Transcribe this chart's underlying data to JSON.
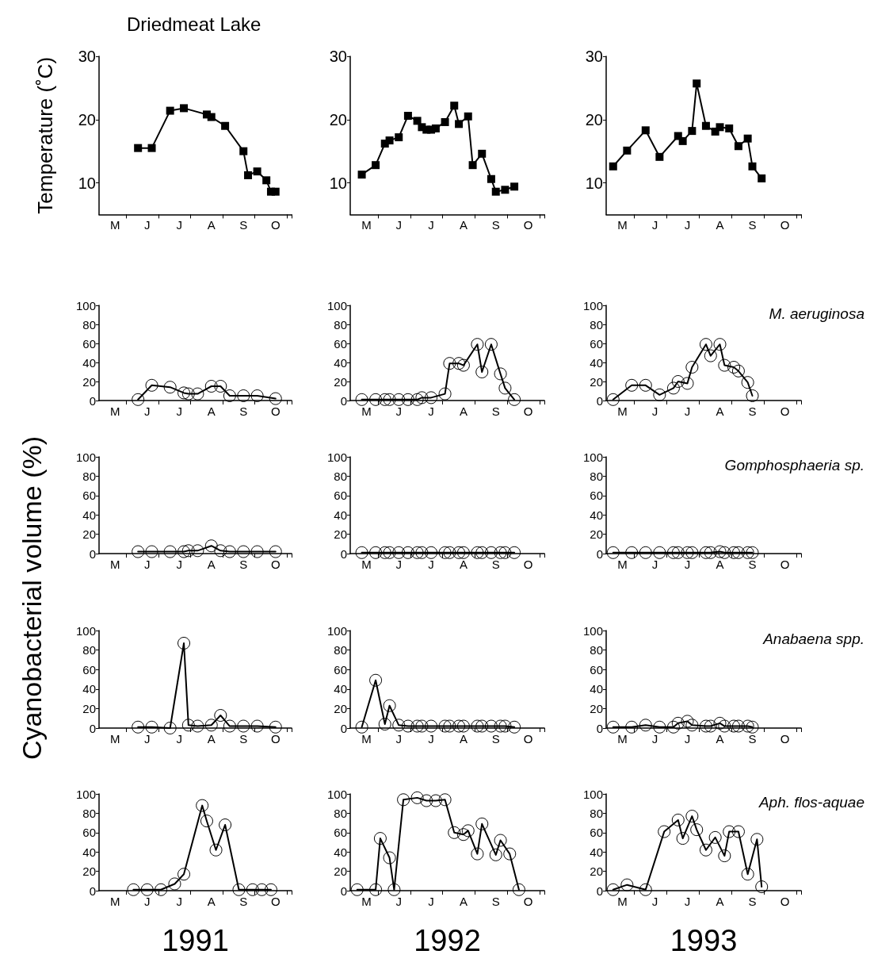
{
  "chart_data": [
    {
      "type": "line",
      "title": "Driedmeat Lake",
      "ylabel": "Temperature (˚C)",
      "marker": "square",
      "line_style": "solid",
      "ylim": [
        5,
        30
      ],
      "yticks": [
        10,
        20,
        30
      ],
      "categories": [
        null,
        null,
        null,
        "M",
        null,
        null,
        null,
        null,
        null,
        null,
        "J",
        null,
        null,
        null,
        null,
        null,
        null,
        "J",
        null,
        null,
        null,
        null,
        null,
        null,
        "A",
        null,
        null,
        null,
        null,
        null,
        null,
        "S",
        null,
        null,
        null,
        null,
        null,
        null,
        "O",
        null,
        null,
        null
      ],
      "series": [
        {
          "color": "#000000",
          "values": [
            null,
            null,
            null,
            null,
            null,
            null,
            null,
            null,
            15.5,
            null,
            null,
            15.5,
            null,
            null,
            null,
            21.4,
            null,
            null,
            21.8,
            null,
            null,
            null,
            null,
            20.8,
            20.4,
            null,
            null,
            19.0,
            null,
            null,
            null,
            15.0,
            11.2,
            null,
            11.8,
            null,
            10.4,
            8.6,
            8.6,
            null,
            null,
            null
          ]
        }
      ]
    },
    {
      "type": "line",
      "marker": "square",
      "line_style": "solid",
      "ylim": [
        5,
        30
      ],
      "yticks": [
        10,
        20,
        30
      ],
      "categories": [
        null,
        null,
        null,
        "M",
        null,
        null,
        null,
        null,
        null,
        null,
        "J",
        null,
        null,
        null,
        null,
        null,
        null,
        "J",
        null,
        null,
        null,
        null,
        null,
        null,
        "A",
        null,
        null,
        null,
        null,
        null,
        null,
        "S",
        null,
        null,
        null,
        null,
        null,
        null,
        "O",
        null,
        null,
        null
      ],
      "series": [
        {
          "color": "#000000",
          "values": [
            null,
            null,
            11.3,
            null,
            null,
            12.8,
            null,
            16.2,
            16.7,
            null,
            17.2,
            null,
            20.6,
            null,
            19.8,
            18.8,
            18.4,
            18.4,
            18.6,
            null,
            19.6,
            null,
            22.2,
            19.3,
            null,
            20.5,
            12.8,
            null,
            14.6,
            null,
            10.6,
            8.6,
            null,
            8.9,
            null,
            9.4,
            null,
            null,
            null,
            null,
            null,
            null
          ]
        }
      ]
    },
    {
      "type": "line",
      "marker": "square",
      "line_style": "solid",
      "ylim": [
        5,
        30
      ],
      "yticks": [
        10,
        20,
        30
      ],
      "categories": [
        null,
        null,
        null,
        "M",
        null,
        null,
        null,
        null,
        null,
        null,
        "J",
        null,
        null,
        null,
        null,
        null,
        null,
        "J",
        null,
        null,
        null,
        null,
        null,
        null,
        "A",
        null,
        null,
        null,
        null,
        null,
        null,
        "S",
        null,
        null,
        null,
        null,
        null,
        null,
        "O",
        null,
        null,
        null
      ],
      "series": [
        {
          "color": "#000000",
          "values": [
            null,
            12.6,
            null,
            null,
            15.1,
            null,
            null,
            null,
            18.3,
            null,
            null,
            14.1,
            null,
            null,
            null,
            17.4,
            16.6,
            null,
            18.2,
            25.7,
            null,
            19.0,
            null,
            18.1,
            18.8,
            null,
            18.6,
            null,
            15.8,
            null,
            17.0,
            12.6,
            null,
            10.7,
            null,
            null,
            null,
            null,
            null,
            null,
            null,
            null
          ]
        }
      ]
    },
    {
      "type": "line",
      "marker": "circle",
      "line_style": "solid",
      "ylim": [
        0,
        100
      ],
      "yticks": [
        0,
        20,
        40,
        60,
        80,
        100
      ],
      "categories": [
        null,
        null,
        null,
        "M",
        null,
        null,
        null,
        null,
        null,
        null,
        "J",
        null,
        null,
        null,
        null,
        null,
        null,
        "J",
        null,
        null,
        null,
        null,
        null,
        null,
        "A",
        null,
        null,
        null,
        null,
        null,
        null,
        "S",
        null,
        null,
        null,
        null,
        null,
        null,
        "O",
        null,
        null,
        null
      ],
      "series": [
        {
          "color": "#000000",
          "values": [
            null,
            null,
            null,
            null,
            null,
            null,
            null,
            null,
            1,
            null,
            null,
            16,
            null,
            null,
            null,
            14,
            null,
            null,
            8,
            7,
            null,
            7,
            null,
            null,
            15,
            null,
            15,
            null,
            5,
            null,
            null,
            5,
            null,
            null,
            5,
            null,
            null,
            null,
            2,
            null,
            null,
            null
          ]
        }
      ]
    },
    {
      "type": "line",
      "marker": "circle",
      "line_style": "solid",
      "ylim": [
        0,
        100
      ],
      "yticks": [
        0,
        20,
        40,
        60,
        80,
        100
      ],
      "categories": [
        null,
        null,
        null,
        "M",
        null,
        null,
        null,
        null,
        null,
        null,
        "J",
        null,
        null,
        null,
        null,
        null,
        null,
        "J",
        null,
        null,
        null,
        null,
        null,
        null,
        "A",
        null,
        null,
        null,
        null,
        null,
        null,
        "S",
        null,
        null,
        null,
        null,
        null,
        null,
        "O",
        null,
        null,
        null
      ],
      "series": [
        {
          "color": "#000000",
          "values": [
            null,
            null,
            1,
            null,
            null,
            1,
            null,
            1,
            1,
            null,
            1,
            null,
            1,
            null,
            1,
            3,
            null,
            3,
            null,
            null,
            7,
            39,
            null,
            39,
            37,
            null,
            null,
            59,
            30,
            null,
            59,
            null,
            28,
            13,
            null,
            1,
            null,
            null,
            null,
            null,
            null,
            null
          ]
        }
      ]
    },
    {
      "type": "line",
      "title": "M. aeruginosa",
      "marker": "circle",
      "line_style": "solid",
      "ylim": [
        0,
        100
      ],
      "yticks": [
        0,
        20,
        40,
        60,
        80,
        100
      ],
      "categories": [
        null,
        null,
        null,
        "M",
        null,
        null,
        null,
        null,
        null,
        null,
        "J",
        null,
        null,
        null,
        null,
        null,
        null,
        "J",
        null,
        null,
        null,
        null,
        null,
        null,
        "A",
        null,
        null,
        null,
        null,
        null,
        null,
        "S",
        null,
        null,
        null,
        null,
        null,
        null,
        "O",
        null,
        null,
        null
      ],
      "series": [
        {
          "color": "#000000",
          "values": [
            null,
            1,
            null,
            null,
            null,
            16,
            null,
            null,
            16,
            null,
            null,
            6,
            null,
            null,
            13,
            20,
            null,
            18,
            35,
            null,
            null,
            59,
            47,
            null,
            59,
            37,
            null,
            35,
            31,
            null,
            19,
            5,
            null,
            null,
            null,
            null,
            null,
            null,
            null,
            null,
            null,
            null
          ]
        }
      ]
    },
    {
      "type": "line",
      "ylabel": "Cyanobacterial volume (%)",
      "marker": "circle",
      "line_style": "solid",
      "ylim": [
        0,
        100
      ],
      "yticks": [
        0,
        20,
        40,
        60,
        80,
        100
      ],
      "categories": [
        null,
        null,
        null,
        "M",
        null,
        null,
        null,
        null,
        null,
        null,
        "J",
        null,
        null,
        null,
        null,
        null,
        null,
        "J",
        null,
        null,
        null,
        null,
        null,
        null,
        "A",
        null,
        null,
        null,
        null,
        null,
        null,
        "S",
        null,
        null,
        null,
        null,
        null,
        null,
        "O",
        null,
        null,
        null
      ],
      "series": [
        {
          "color": "#000000",
          "values": [
            null,
            null,
            null,
            null,
            null,
            null,
            null,
            null,
            2,
            null,
            null,
            2,
            null,
            null,
            null,
            2,
            null,
            null,
            2,
            3,
            null,
            3,
            null,
            null,
            8,
            null,
            3,
            null,
            2,
            null,
            null,
            2,
            null,
            null,
            2,
            null,
            null,
            null,
            2,
            null,
            null,
            null
          ]
        }
      ]
    },
    {
      "type": "line",
      "marker": "circle",
      "line_style": "solid",
      "ylim": [
        0,
        100
      ],
      "yticks": [
        0,
        20,
        40,
        60,
        80,
        100
      ],
      "categories": [
        null,
        null,
        null,
        "M",
        null,
        null,
        null,
        null,
        null,
        null,
        "J",
        null,
        null,
        null,
        null,
        null,
        null,
        "J",
        null,
        null,
        null,
        null,
        null,
        null,
        "A",
        null,
        null,
        null,
        null,
        null,
        null,
        "S",
        null,
        null,
        null,
        null,
        null,
        null,
        "O",
        null,
        null,
        null
      ],
      "series": [
        {
          "color": "#000000",
          "values": [
            null,
            null,
            1,
            null,
            null,
            1,
            null,
            1,
            1,
            null,
            1,
            null,
            1,
            null,
            1,
            1,
            null,
            1,
            null,
            null,
            1,
            1,
            null,
            1,
            1,
            null,
            null,
            1,
            1,
            null,
            1,
            null,
            1,
            1,
            null,
            1,
            null,
            null,
            null,
            null,
            null,
            null
          ]
        }
      ]
    },
    {
      "type": "line",
      "title": "Gomphosphaeria sp.",
      "marker": "circle",
      "line_style": "solid",
      "ylim": [
        0,
        100
      ],
      "yticks": [
        0,
        20,
        40,
        60,
        80,
        100
      ],
      "categories": [
        null,
        null,
        null,
        "M",
        null,
        null,
        null,
        null,
        null,
        null,
        "J",
        null,
        null,
        null,
        null,
        null,
        null,
        "J",
        null,
        null,
        null,
        null,
        null,
        null,
        "A",
        null,
        null,
        null,
        null,
        null,
        null,
        "S",
        null,
        null,
        null,
        null,
        null,
        null,
        "O",
        null,
        null,
        null
      ],
      "series": [
        {
          "color": "#000000",
          "values": [
            null,
            1,
            null,
            null,
            null,
            1,
            null,
            null,
            1,
            null,
            null,
            1,
            null,
            null,
            1,
            1,
            null,
            1,
            1,
            null,
            null,
            1,
            1,
            null,
            2,
            1,
            null,
            1,
            1,
            null,
            1,
            1,
            null,
            null,
            null,
            null,
            null,
            null,
            null,
            null,
            null,
            null
          ]
        }
      ]
    },
    {
      "type": "line",
      "marker": "circle",
      "line_style": "solid",
      "ylim": [
        0,
        100
      ],
      "yticks": [
        0,
        20,
        40,
        60,
        80,
        100
      ],
      "categories": [
        null,
        null,
        null,
        "M",
        null,
        null,
        null,
        null,
        null,
        null,
        "J",
        null,
        null,
        null,
        null,
        null,
        null,
        "J",
        null,
        null,
        null,
        null,
        null,
        null,
        "A",
        null,
        null,
        null,
        null,
        null,
        null,
        "S",
        null,
        null,
        null,
        null,
        null,
        null,
        "O",
        null,
        null,
        null
      ],
      "series": [
        {
          "color": "#000000",
          "values": [
            null,
            null,
            null,
            null,
            null,
            null,
            null,
            null,
            1,
            null,
            null,
            1,
            null,
            null,
            null,
            0,
            null,
            null,
            87,
            3,
            null,
            2,
            null,
            null,
            3,
            null,
            13,
            null,
            2,
            null,
            null,
            2,
            null,
            null,
            2,
            null,
            null,
            null,
            1,
            null,
            null,
            null
          ]
        }
      ]
    },
    {
      "type": "line",
      "marker": "circle",
      "line_style": "solid",
      "ylim": [
        0,
        100
      ],
      "yticks": [
        0,
        20,
        40,
        60,
        80,
        100
      ],
      "categories": [
        null,
        null,
        null,
        "M",
        null,
        null,
        null,
        null,
        null,
        null,
        "J",
        null,
        null,
        null,
        null,
        null,
        null,
        "J",
        null,
        null,
        null,
        null,
        null,
        null,
        "A",
        null,
        null,
        null,
        null,
        null,
        null,
        "S",
        null,
        null,
        null,
        null,
        null,
        null,
        "O",
        null,
        null,
        null
      ],
      "series": [
        {
          "color": "#000000",
          "values": [
            null,
            null,
            1,
            null,
            null,
            49,
            null,
            4,
            23,
            null,
            3,
            null,
            2,
            null,
            2,
            2,
            null,
            2,
            null,
            null,
            2,
            2,
            null,
            2,
            2,
            null,
            null,
            2,
            2,
            null,
            2,
            null,
            2,
            2,
            null,
            1,
            null,
            null,
            null,
            null,
            null,
            null
          ]
        }
      ]
    },
    {
      "type": "line",
      "title": "Anabaena spp.",
      "marker": "circle",
      "line_style": "solid",
      "ylim": [
        0,
        100
      ],
      "yticks": [
        0,
        20,
        40,
        60,
        80,
        100
      ],
      "categories": [
        null,
        null,
        null,
        "M",
        null,
        null,
        null,
        null,
        null,
        null,
        "J",
        null,
        null,
        null,
        null,
        null,
        null,
        "J",
        null,
        null,
        null,
        null,
        null,
        null,
        "A",
        null,
        null,
        null,
        null,
        null,
        null,
        "S",
        null,
        null,
        null,
        null,
        null,
        null,
        "O",
        null,
        null,
        null
      ],
      "series": [
        {
          "color": "#000000",
          "values": [
            null,
            1,
            null,
            null,
            null,
            1,
            null,
            null,
            3,
            null,
            null,
            1,
            null,
            null,
            1,
            5,
            null,
            7,
            3,
            null,
            null,
            2,
            2,
            null,
            5,
            2,
            null,
            2,
            2,
            null,
            2,
            1,
            null,
            null,
            null,
            null,
            null,
            null,
            null,
            null,
            null,
            null
          ]
        }
      ]
    },
    {
      "type": "line",
      "xlabel": "1991",
      "marker": "circle",
      "line_style": "solid",
      "ylim": [
        0,
        100
      ],
      "yticks": [
        0,
        20,
        40,
        60,
        80,
        100
      ],
      "categories": [
        null,
        null,
        null,
        "M",
        null,
        null,
        null,
        null,
        null,
        null,
        "J",
        null,
        null,
        null,
        null,
        null,
        null,
        "J",
        null,
        null,
        null,
        null,
        null,
        null,
        "A",
        null,
        null,
        null,
        null,
        null,
        null,
        "S",
        null,
        null,
        null,
        null,
        null,
        null,
        "O",
        null,
        null,
        null
      ],
      "series": [
        {
          "color": "#000000",
          "values": [
            null,
            null,
            null,
            null,
            null,
            null,
            null,
            1,
            null,
            null,
            1,
            null,
            null,
            1,
            null,
            null,
            7,
            null,
            17,
            null,
            null,
            null,
            88,
            72,
            null,
            42,
            null,
            68,
            null,
            null,
            1,
            null,
            null,
            1,
            null,
            1,
            null,
            1,
            null,
            null,
            null,
            null
          ]
        }
      ]
    },
    {
      "type": "line",
      "xlabel": "1992",
      "marker": "circle",
      "line_style": "solid",
      "ylim": [
        0,
        100
      ],
      "yticks": [
        0,
        20,
        40,
        60,
        80,
        100
      ],
      "categories": [
        null,
        null,
        null,
        "M",
        null,
        null,
        null,
        null,
        null,
        null,
        "J",
        null,
        null,
        null,
        null,
        null,
        null,
        "J",
        null,
        null,
        null,
        null,
        null,
        null,
        "A",
        null,
        null,
        null,
        null,
        null,
        null,
        "S",
        null,
        null,
        null,
        null,
        null,
        null,
        "O",
        null,
        null,
        null
      ],
      "series": [
        {
          "color": "#000000",
          "values": [
            null,
            1,
            null,
            null,
            null,
            1,
            54,
            null,
            34,
            1,
            null,
            94,
            null,
            null,
            96,
            null,
            93,
            null,
            93,
            null,
            94,
            null,
            60,
            null,
            58,
            62,
            null,
            38,
            69,
            null,
            null,
            37,
            52,
            null,
            38,
            null,
            1,
            null,
            null,
            null,
            null,
            null
          ]
        }
      ]
    },
    {
      "type": "line",
      "title": "Aph. flos-aquae",
      "xlabel": "1993",
      "marker": "circle",
      "line_style": "solid",
      "ylim": [
        0,
        100
      ],
      "yticks": [
        0,
        20,
        40,
        60,
        80,
        100
      ],
      "categories": [
        null,
        null,
        null,
        "M",
        null,
        null,
        null,
        null,
        null,
        null,
        "J",
        null,
        null,
        null,
        null,
        null,
        null,
        "J",
        null,
        null,
        null,
        null,
        null,
        null,
        "A",
        null,
        null,
        null,
        null,
        null,
        null,
        "S",
        null,
        null,
        null,
        null,
        null,
        null,
        "O",
        null,
        null,
        null
      ],
      "series": [
        {
          "color": "#000000",
          "values": [
            null,
            1,
            null,
            null,
            6,
            null,
            null,
            null,
            1,
            null,
            null,
            null,
            61,
            null,
            null,
            73,
            54,
            null,
            77,
            63,
            null,
            42,
            null,
            55,
            null,
            36,
            61,
            null,
            61,
            null,
            17,
            null,
            53,
            4,
            null,
            null,
            null,
            null,
            null,
            null,
            null,
            null
          ]
        }
      ]
    }
  ]
}
